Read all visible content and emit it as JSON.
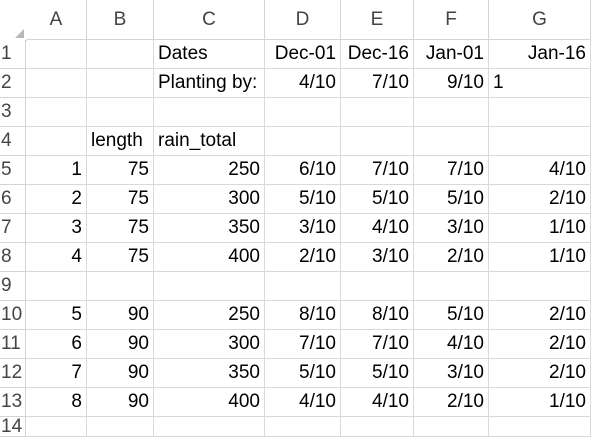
{
  "columns": [
    "A",
    "B",
    "C",
    "D",
    "E",
    "F",
    "G"
  ],
  "rows": [
    "1",
    "2",
    "3",
    "4",
    "5",
    "6",
    "7",
    "8",
    "9",
    "10",
    "11",
    "12",
    "13",
    "14"
  ],
  "cells": {
    "C1": "Dates",
    "D1": "Dec-01",
    "E1": "Dec-16",
    "F1": "Jan-01",
    "G1": "Jan-16",
    "C2": "Planting by:",
    "D2": "4/10",
    "E2": "7/10",
    "F2": "9/10",
    "G2": "1",
    "B4": "length",
    "C4": "rain_total",
    "A5": "1",
    "B5": "75",
    "C5": "250",
    "D5": "6/10",
    "E5": "7/10",
    "F5": "7/10",
    "G5": "4/10",
    "A6": "2",
    "B6": "75",
    "C6": "300",
    "D6": "5/10",
    "E6": "5/10",
    "F6": "5/10",
    "G6": "2/10",
    "A7": "3",
    "B7": "75",
    "C7": "350",
    "D7": "3/10",
    "E7": "4/10",
    "F7": "3/10",
    "G7": "1/10",
    "A8": "4",
    "B8": "75",
    "C8": "400",
    "D8": "2/10",
    "E8": "3/10",
    "F8": "2/10",
    "G8": "1/10",
    "A10": "5",
    "B10": "90",
    "C10": "250",
    "D10": "8/10",
    "E10": "8/10",
    "F10": "5/10",
    "G10": "2/10",
    "A11": "6",
    "B11": "90",
    "C11": "300",
    "D11": "7/10",
    "E11": "7/10",
    "F11": "4/10",
    "G11": "2/10",
    "A12": "7",
    "B12": "90",
    "C12": "350",
    "D12": "5/10",
    "E12": "5/10",
    "F12": "3/10",
    "G12": "2/10",
    "A13": "8",
    "B13": "90",
    "C13": "400",
    "D13": "4/10",
    "E13": "4/10",
    "F13": "2/10",
    "G13": "1/10"
  },
  "left_aligned_cells": [
    "C1",
    "C2",
    "G2",
    "B4",
    "C4"
  ]
}
